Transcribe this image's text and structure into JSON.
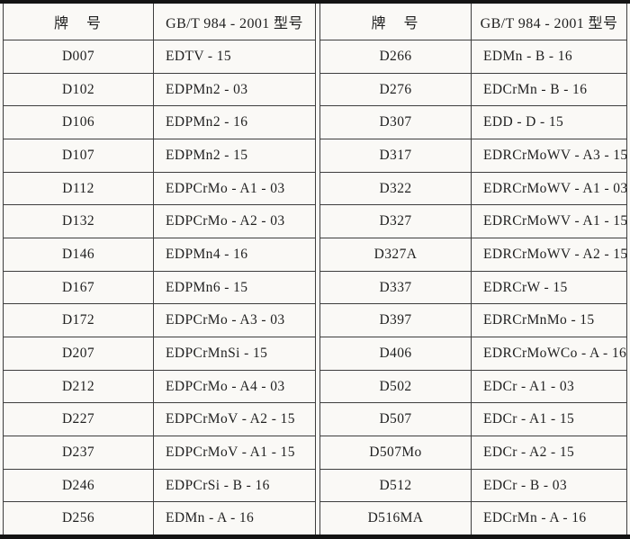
{
  "colors": {
    "paper": "#faf9f6",
    "line": "#3e3e3e",
    "border": "#141414",
    "text": "#1f1f1f"
  },
  "table": {
    "header": {
      "brand_label": "牌　号",
      "model_label": "GB/T 984 - 2001 型号"
    },
    "halves": [
      {
        "rows": [
          {
            "brand": "D007",
            "model": "EDTV - 15"
          },
          {
            "brand": "D102",
            "model": "EDPMn2 - 03"
          },
          {
            "brand": "D106",
            "model": "EDPMn2 - 16"
          },
          {
            "brand": "D107",
            "model": "EDPMn2 - 15"
          },
          {
            "brand": "D112",
            "model": "EDPCrMo - A1 - 03"
          },
          {
            "brand": "D132",
            "model": "EDPCrMo - A2 - 03"
          },
          {
            "brand": "D146",
            "model": "EDPMn4 - 16"
          },
          {
            "brand": "D167",
            "model": "EDPMn6 - 15"
          },
          {
            "brand": "D172",
            "model": "EDPCrMo - A3 - 03"
          },
          {
            "brand": "D207",
            "model": "EDPCrMnSi - 15"
          },
          {
            "brand": "D212",
            "model": "EDPCrMo - A4 - 03"
          },
          {
            "brand": "D227",
            "model": "EDPCrMoV - A2 - 15"
          },
          {
            "brand": "D237",
            "model": "EDPCrMoV - A1 - 15"
          },
          {
            "brand": "D246",
            "model": "EDPCrSi - B - 16"
          },
          {
            "brand": "D256",
            "model": "EDMn - A - 16"
          }
        ]
      },
      {
        "rows": [
          {
            "brand": "D266",
            "model": "EDMn - B - 16"
          },
          {
            "brand": "D276",
            "model": "EDCrMn - B - 16"
          },
          {
            "brand": "D307",
            "model": "EDD - D - 15"
          },
          {
            "brand": "D317",
            "model": "EDRCrMoWV - A3 - 15"
          },
          {
            "brand": "D322",
            "model": "EDRCrMoWV - A1 - 03"
          },
          {
            "brand": "D327",
            "model": "EDRCrMoWV - A1 - 15"
          },
          {
            "brand": "D327A",
            "model": "EDRCrMoWV - A2 - 15"
          },
          {
            "brand": "D337",
            "model": "EDRCrW - 15"
          },
          {
            "brand": "D397",
            "model": "EDRCrMnMo - 15"
          },
          {
            "brand": "D406",
            "model": "EDRCrMoWCo - A - 16"
          },
          {
            "brand": "D502",
            "model": "EDCr - A1 - 03"
          },
          {
            "brand": "D507",
            "model": "EDCr - A1 - 15"
          },
          {
            "brand": "D507Mo",
            "model": "EDCr - A2 - 15"
          },
          {
            "brand": "D512",
            "model": "EDCr - B - 03"
          },
          {
            "brand": "D516MA",
            "model": "EDCrMn - A - 16"
          }
        ]
      }
    ]
  }
}
